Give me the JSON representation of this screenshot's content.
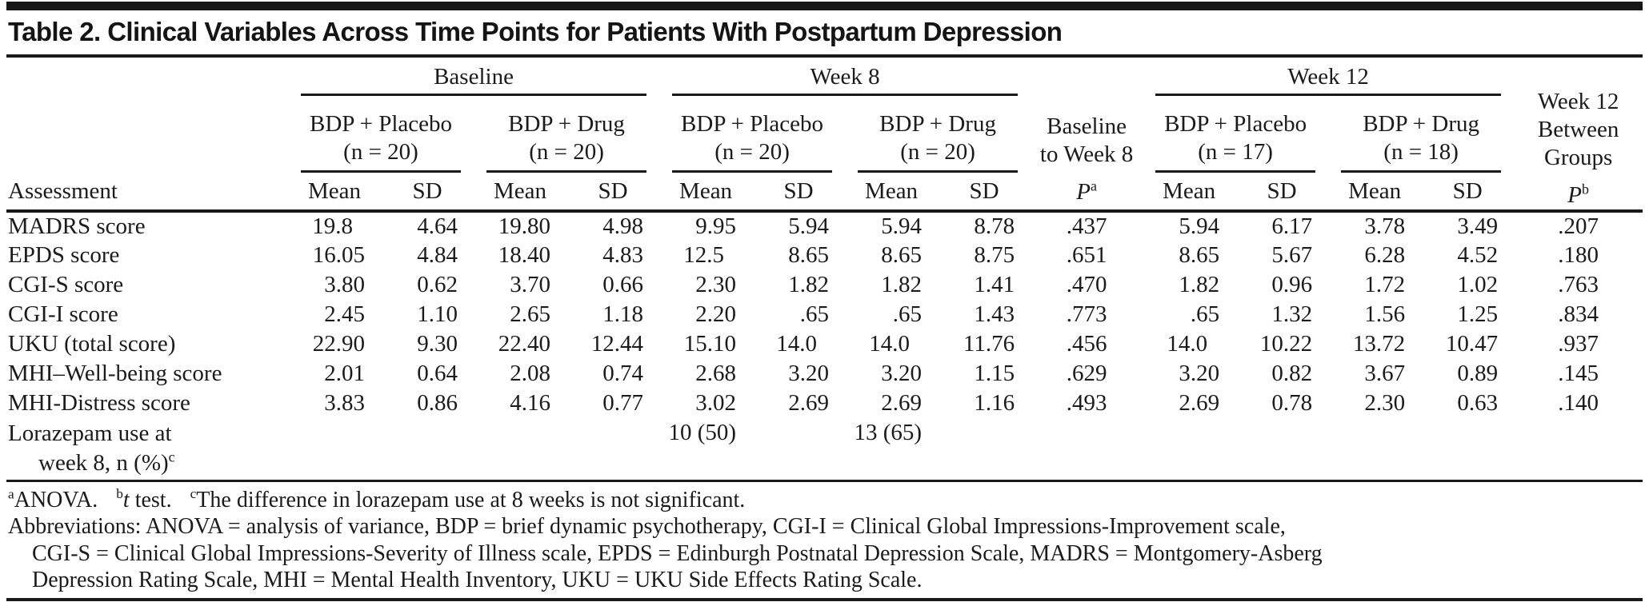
{
  "title": "Table 2. Clinical Variables Across Time Points for Patients With Postpartum Depression",
  "table": {
    "assessment_header": "Assessment",
    "stat_headers": [
      "Mean",
      "SD"
    ],
    "groups": [
      {
        "label": "Baseline",
        "subgroups": [
          {
            "name": "BDP + Placebo",
            "n": "(n = 20)"
          },
          {
            "name": "BDP + Drug",
            "n": "(n = 20)"
          }
        ]
      },
      {
        "label": "Week 8",
        "subgroups": [
          {
            "name": "BDP + Placebo",
            "n": "(n = 20)"
          },
          {
            "name": "BDP + Drug",
            "n": "(n = 20)"
          }
        ]
      },
      {
        "label": "Week 12",
        "subgroups": [
          {
            "name": "BDP + Placebo",
            "n": "(n = 17)"
          },
          {
            "name": "BDP + Drug",
            "n": "(n = 18)"
          }
        ]
      }
    ],
    "p_col_baseline_week8": {
      "lines": [
        "Baseline",
        "to Week 8"
      ],
      "symbol": "P",
      "sup": "a"
    },
    "p_col_week12_between": {
      "lines": [
        "Week 12",
        "Between",
        "Groups"
      ],
      "symbol": "P",
      "sup": "b"
    },
    "rows": [
      {
        "label": "MADRS score",
        "values": [
          "19.8",
          "4.64",
          "19.80",
          "4.98",
          "9.95",
          "5.94",
          "5.94",
          "8.78",
          ".437",
          "5.94",
          "6.17",
          "3.78",
          "3.49",
          ".207"
        ]
      },
      {
        "label": "EPDS score",
        "values": [
          "16.05",
          "4.84",
          "18.40",
          "4.83",
          "12.5",
          "8.65",
          "8.65",
          "8.75",
          ".651",
          "8.65",
          "5.67",
          "6.28",
          "4.52",
          ".180"
        ]
      },
      {
        "label": "CGI-S score",
        "values": [
          "3.80",
          "0.62",
          "3.70",
          "0.66",
          "2.30",
          "1.82",
          "1.82",
          "1.41",
          ".470",
          "1.82",
          "0.96",
          "1.72",
          "1.02",
          ".763"
        ]
      },
      {
        "label": "CGI-I score",
        "values": [
          "2.45",
          "1.10",
          "2.65",
          "1.18",
          "2.20",
          ".65",
          ".65",
          "1.43",
          ".773",
          ".65",
          "1.32",
          "1.56",
          "1.25",
          ".834"
        ]
      },
      {
        "label": "UKU (total score)",
        "values": [
          "22.90",
          "9.30",
          "22.40",
          "12.44",
          "15.10",
          "14.0",
          "14.0",
          "11.76",
          ".456",
          "14.0",
          "10.22",
          "13.72",
          "10.47",
          ".937"
        ]
      },
      {
        "label": "MHI–Well-being score",
        "values": [
          "2.01",
          "0.64",
          "2.08",
          "0.74",
          "2.68",
          "3.20",
          "3.20",
          "1.15",
          ".629",
          "3.20",
          "0.82",
          "3.67",
          "0.89",
          ".145"
        ]
      },
      {
        "label": "MHI-Distress score",
        "values": [
          "3.83",
          "0.86",
          "4.16",
          "0.77",
          "3.02",
          "2.69",
          "2.69",
          "1.16",
          ".493",
          "2.69",
          "0.78",
          "2.30",
          "0.63",
          ".140"
        ]
      },
      {
        "label": "Lorazepam use at",
        "label_cont": "week 8, n (%)",
        "label_sup": "c",
        "values": [
          "",
          "",
          "",
          "",
          "10 (50)",
          "",
          "13 (65)",
          "",
          "",
          "",
          "",
          "",
          "",
          ""
        ]
      }
    ]
  },
  "footnotes": {
    "tests": {
      "a_sup": "a",
      "a_text": "ANOVA.",
      "b_sup": "b",
      "b_italic": "t",
      "b_text": " test.",
      "c_sup": "c",
      "c_text": "The difference in lorazepam use at 8 weeks is not significant."
    },
    "abbreviations": [
      "Abbreviations: ANOVA = analysis of variance, BDP = brief dynamic psychotherapy, CGI-I = Clinical Global Impressions-Improvement scale,",
      "CGI-S = Clinical Global Impressions-Severity of Illness scale, EPDS = Edinburgh Postnatal Depression Scale, MADRS = Montgomery-Asberg",
      "Depression Rating Scale, MHI = Mental Health Inventory, UKU = UKU Side Effects Rating Scale."
    ]
  }
}
